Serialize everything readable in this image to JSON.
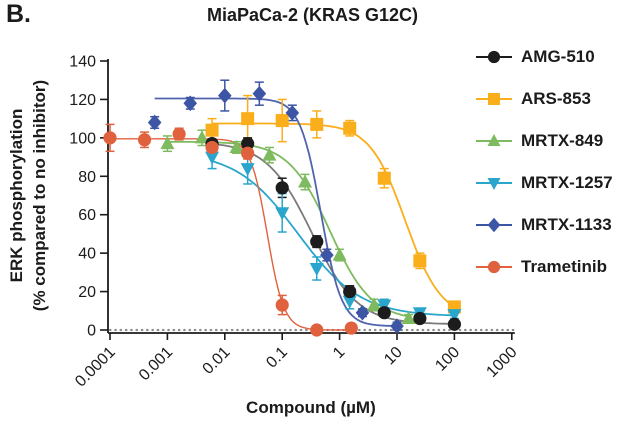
{
  "figure": {
    "panel_label": "B.",
    "title": "MiaPaCa-2 (KRAS G12C)"
  },
  "chart_data": {
    "type": "line",
    "subtype": "dose-response scatter with fitted sigmoid curves and error bars",
    "x_scale": "log",
    "xlabel": "Compound (µM)",
    "ylabel_line1": "ERK phosphorylation",
    "ylabel_line2": "(% compared to no inhibitor)",
    "xtick_labels": [
      "0.0001",
      "0.001",
      "0.01",
      "0.1",
      "1",
      "10",
      "100",
      "1000"
    ],
    "xtick_values": [
      0.0001,
      0.001,
      0.01,
      0.1,
      1,
      10,
      100,
      1000
    ],
    "ytick_values": [
      0,
      20,
      40,
      60,
      80,
      100,
      120,
      140
    ],
    "ylim": [
      0,
      140
    ],
    "xlim": [
      0.0001,
      1000
    ],
    "zero_line": "dotted",
    "grid": "off",
    "legend_position": "right",
    "series": [
      {
        "name": "AMG-510",
        "marker": "circle",
        "color": "#1c1c1c",
        "line_color": "#7a7a7a",
        "x": [
          0.006,
          0.025,
          0.1,
          0.4,
          1.5,
          6,
          25,
          100
        ],
        "y": [
          97,
          97,
          74,
          46,
          20,
          9,
          6,
          3
        ],
        "err": [
          6,
          3,
          5,
          3,
          3,
          2,
          2,
          2
        ],
        "curve": {
          "top": 98,
          "bottom": 3,
          "ec50": 0.33,
          "hill": 1.1
        }
      },
      {
        "name": "ARS-853",
        "marker": "square",
        "color": "#FAAE1B",
        "line_color": "#FAAE1B",
        "x": [
          0.006,
          0.025,
          0.1,
          0.4,
          1.5,
          6,
          25,
          100
        ],
        "y": [
          104,
          110,
          109,
          107,
          105,
          79,
          36,
          12
        ],
        "err": [
          6,
          12,
          11,
          7,
          4,
          5,
          4,
          3
        ],
        "curve": {
          "top": 107.5,
          "bottom": 6,
          "ec50": 14,
          "hill": 1.4
        }
      },
      {
        "name": "MRTX-849",
        "marker": "triangle-up",
        "color": "#7EBB5F",
        "line_color": "#7EBB5F",
        "x": [
          0.001,
          0.004,
          0.016,
          0.06,
          0.25,
          1,
          4,
          16
        ],
        "y": [
          97,
          100,
          95,
          91,
          77,
          39,
          13,
          6
        ],
        "err": [
          4,
          4,
          3,
          4,
          4,
          3,
          3,
          2
        ],
        "curve": {
          "top": 98,
          "bottom": 5,
          "ec50": 0.68,
          "hill": 1.2
        }
      },
      {
        "name": "MRTX-1257",
        "marker": "triangle-down",
        "color": "#2AA6CC",
        "line_color": "#2AA6CC",
        "x": [
          0.006,
          0.025,
          0.1,
          0.4,
          1.5,
          6,
          25,
          100
        ],
        "y": [
          90,
          84,
          61,
          32,
          15,
          13,
          9,
          8
        ],
        "err": [
          6,
          8,
          10,
          6,
          4,
          3,
          2,
          2
        ],
        "curve": {
          "top": 93,
          "bottom": 7,
          "ec50": 0.19,
          "hill": 0.8
        }
      },
      {
        "name": "MRTX-1133",
        "marker": "diamond",
        "color": "#3C55A5",
        "line_color": "#5064AD",
        "x": [
          0.0006,
          0.0025,
          0.01,
          0.04,
          0.15,
          0.6,
          2.5,
          10
        ],
        "y": [
          108,
          118,
          122,
          123,
          113,
          39,
          9,
          2
        ],
        "err": [
          3,
          3,
          8,
          6,
          4,
          3,
          2,
          2
        ],
        "curve": {
          "top": 120.5,
          "bottom": 2,
          "ec50": 0.47,
          "hill": 2.4
        }
      },
      {
        "name": "Trametinib",
        "marker": "circle",
        "color": "#E0613E",
        "line_color": "#E0613E",
        "x": [
          0.0001,
          0.0004,
          0.0016,
          0.006,
          0.025,
          0.1,
          0.4,
          1.6
        ],
        "y": [
          100,
          99,
          102,
          95,
          92,
          13,
          0,
          1
        ],
        "err": [
          7,
          4,
          3,
          3,
          3,
          5,
          0,
          2
        ],
        "curve": {
          "top": 99.5,
          "bottom": 0,
          "ec50": 0.055,
          "hill": 3
        }
      }
    ]
  }
}
